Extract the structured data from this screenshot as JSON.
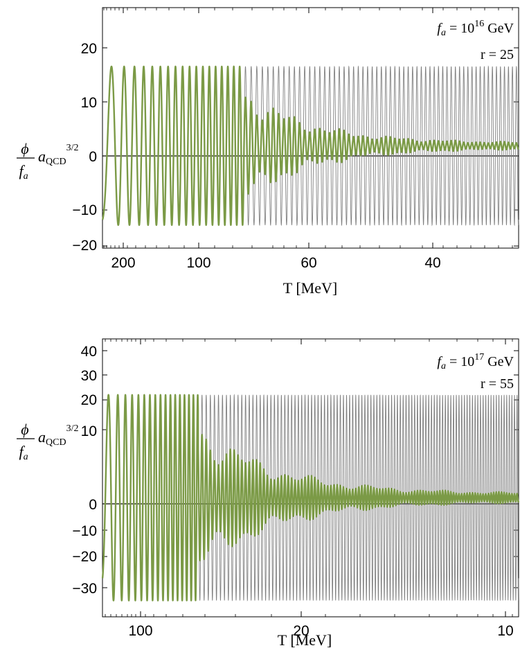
{
  "chart_data": [
    {
      "type": "line",
      "panel": "top",
      "xlabel": "T [MeV]",
      "x_ticks": [
        "200",
        "100",
        "60",
        "40"
      ],
      "ylim": [
        -20,
        27
      ],
      "y_ticks": [
        "20",
        "10",
        "0",
        "−10",
        "−20"
      ],
      "ylabel": {
        "num": "ϕ",
        "den": "f",
        "den_sub": "a",
        "factor": "a",
        "factor_sub": "QCD",
        "power": "3/2"
      },
      "annotations": [
        {
          "text": "f",
          "sub": "a",
          "rest": " = 10",
          "sup": "16",
          "tail": " GeV"
        },
        {
          "text": "r = 25"
        }
      ],
      "series": [
        {
          "color": "#808080",
          "amplitude": 15.5,
          "oscillations": 78,
          "start_phase": -1.2
        },
        {
          "color": "#7b9a46",
          "amplitude": 15.5,
          "coherent_cycles": 11.5,
          "tail_amplitude": 0.6
        }
      ]
    },
    {
      "type": "line",
      "panel": "bottom",
      "xlabel": "T [MeV]",
      "x_ticks": [
        "100",
        "20",
        "10"
      ],
      "ylim": [
        -33,
        44
      ],
      "y_ticks": [
        "40",
        "30",
        "20",
        "10",
        "0",
        "−10",
        "−20",
        "−30"
      ],
      "ylabel": {
        "num": "ϕ",
        "den": "f",
        "den_sub": "a",
        "factor": "a",
        "factor_sub": "QCD",
        "power": "3/2"
      },
      "annotations": [
        {
          "text": "f",
          "sub": "a",
          "rest": " = 10",
          "sup": "17",
          "tail": " GeV"
        },
        {
          "text": "r = 55"
        }
      ],
      "series": [
        {
          "color": "#808080",
          "amplitude": 28.5,
          "oscillations": 120,
          "start_phase": -0.9
        },
        {
          "color": "#7b9a46",
          "amplitude": 28.5,
          "coherent_cycles": 8.5,
          "tail_amplitude": 1.2
        }
      ]
    }
  ]
}
